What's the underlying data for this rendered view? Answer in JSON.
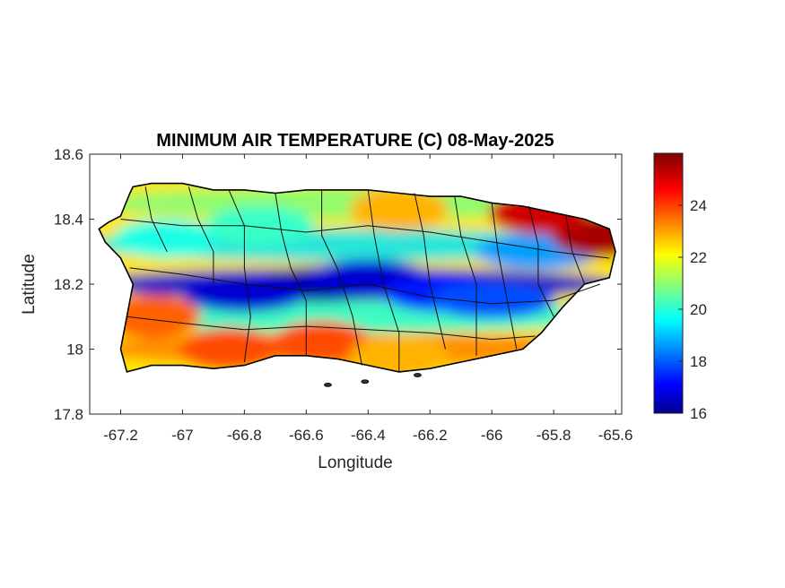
{
  "figure": {
    "title": "MINIMUM AIR TEMPERATURE (C) 08-May-2025",
    "xlabel": "Longitude",
    "ylabel": "Latitude"
  },
  "map": {
    "region": "Puerto Rico",
    "variable": "minimum air temperature",
    "units": "C",
    "date": "08-May-2025",
    "xlim": [
      -67.3,
      -65.58
    ],
    "ylim": [
      17.8,
      18.6
    ],
    "x_ticks": [
      -67.2,
      -67,
      -66.8,
      -66.6,
      -66.4,
      -66.2,
      -66,
      -65.8,
      -65.6
    ],
    "x_tick_labels": [
      "-67.2",
      "-67",
      "-66.8",
      "-66.6",
      "-66.4",
      "-66.2",
      "-66",
      "-65.8",
      "-65.6"
    ],
    "y_ticks": [
      17.8,
      18,
      18.2,
      18.4,
      18.6
    ],
    "y_tick_labels": [
      "17.8",
      "18",
      "18.2",
      "18.4",
      "18.6"
    ],
    "colormap": "jet",
    "color_range": [
      16,
      26
    ],
    "colorbar_ticks": [
      16,
      18,
      20,
      22,
      24
    ],
    "colorbar_tick_labels": [
      "16",
      "18",
      "20",
      "22",
      "24"
    ],
    "colors": [
      "#00008f",
      "#0000ff",
      "#00ffff",
      "#ffff00",
      "#ff0000",
      "#800000"
    ],
    "features": [
      {
        "type": "cold",
        "lon": -66.55,
        "lat": 18.2,
        "value": 16.3
      },
      {
        "type": "cold",
        "lon": -66.8,
        "lat": 18.17,
        "value": 16.8
      },
      {
        "type": "cold",
        "lon": -66.4,
        "lat": 18.22,
        "value": 16.8
      },
      {
        "type": "cold",
        "lon": -66.15,
        "lat": 18.17,
        "value": 17.5
      },
      {
        "type": "cold",
        "lon": -66.0,
        "lat": 18.15,
        "value": 18
      },
      {
        "type": "cold",
        "lon": -65.85,
        "lat": 18.3,
        "value": 18.8
      },
      {
        "type": "cool",
        "lon": -67.05,
        "lat": 18.34,
        "value": 20
      },
      {
        "type": "cool",
        "lon": -66.75,
        "lat": 18.38,
        "value": 20.3
      },
      {
        "type": "warm",
        "lon": -65.65,
        "lat": 18.35,
        "value": 25.6
      },
      {
        "type": "warm",
        "lon": -65.85,
        "lat": 18.42,
        "value": 25.2
      },
      {
        "type": "warm",
        "lon": -66.85,
        "lat": 18.0,
        "value": 24
      },
      {
        "type": "warm",
        "lon": -66.55,
        "lat": 18.02,
        "value": 24
      },
      {
        "type": "warm",
        "lon": -67.1,
        "lat": 18.1,
        "value": 23.8
      },
      {
        "type": "warm",
        "lon": -66.3,
        "lat": 18.43,
        "value": 23
      },
      {
        "type": "warm",
        "lon": -66.3,
        "lat": 17.98,
        "value": 23
      }
    ],
    "outline": [
      [
        -67.27,
        18.37
      ],
      [
        -67.24,
        18.39
      ],
      [
        -67.2,
        18.41
      ],
      [
        -67.17,
        18.48
      ],
      [
        -67.16,
        18.5
      ],
      [
        -67.1,
        18.51
      ],
      [
        -67.0,
        18.51
      ],
      [
        -66.9,
        18.49
      ],
      [
        -66.8,
        18.49
      ],
      [
        -66.7,
        18.48
      ],
      [
        -66.6,
        18.49
      ],
      [
        -66.5,
        18.49
      ],
      [
        -66.4,
        18.49
      ],
      [
        -66.3,
        18.48
      ],
      [
        -66.2,
        18.47
      ],
      [
        -66.1,
        18.47
      ],
      [
        -66.0,
        18.45
      ],
      [
        -65.9,
        18.44
      ],
      [
        -65.8,
        18.42
      ],
      [
        -65.7,
        18.4
      ],
      [
        -65.62,
        18.37
      ],
      [
        -65.6,
        18.3
      ],
      [
        -65.62,
        18.22
      ],
      [
        -65.7,
        18.2
      ],
      [
        -65.77,
        18.13
      ],
      [
        -65.84,
        18.05
      ],
      [
        -65.9,
        18.0
      ],
      [
        -66.0,
        17.98
      ],
      [
        -66.1,
        17.96
      ],
      [
        -66.2,
        17.94
      ],
      [
        -66.3,
        17.93
      ],
      [
        -66.4,
        17.95
      ],
      [
        -66.5,
        17.97
      ],
      [
        -66.6,
        17.98
      ],
      [
        -66.7,
        17.98
      ],
      [
        -66.8,
        17.95
      ],
      [
        -66.9,
        17.94
      ],
      [
        -67.0,
        17.95
      ],
      [
        -67.1,
        17.95
      ],
      [
        -67.18,
        17.93
      ],
      [
        -67.2,
        18.0
      ],
      [
        -67.18,
        18.1
      ],
      [
        -67.16,
        18.2
      ],
      [
        -67.2,
        18.28
      ],
      [
        -67.25,
        18.33
      ]
    ],
    "municipal_lines": [
      [
        [
          -67.12,
          18.5
        ],
        [
          -67.1,
          18.4
        ],
        [
          -67.05,
          18.3
        ]
      ],
      [
        [
          -66.98,
          18.5
        ],
        [
          -66.95,
          18.4
        ],
        [
          -66.9,
          18.3
        ],
        [
          -66.9,
          18.2
        ]
      ],
      [
        [
          -66.85,
          18.49
        ],
        [
          -66.8,
          18.38
        ],
        [
          -66.8,
          18.25
        ],
        [
          -66.78,
          18.1
        ],
        [
          -66.8,
          17.96
        ]
      ],
      [
        [
          -66.7,
          18.48
        ],
        [
          -66.68,
          18.36
        ],
        [
          -66.65,
          18.25
        ],
        [
          -66.6,
          18.15
        ],
        [
          -66.6,
          17.98
        ]
      ],
      [
        [
          -66.55,
          18.49
        ],
        [
          -66.55,
          18.35
        ],
        [
          -66.5,
          18.25
        ],
        [
          -66.45,
          18.1
        ],
        [
          -66.42,
          17.95
        ]
      ],
      [
        [
          -66.4,
          18.49
        ],
        [
          -66.38,
          18.35
        ],
        [
          -66.35,
          18.2
        ],
        [
          -66.3,
          18.05
        ],
        [
          -66.3,
          17.93
        ]
      ],
      [
        [
          -66.25,
          18.48
        ],
        [
          -66.22,
          18.35
        ],
        [
          -66.2,
          18.2
        ],
        [
          -66.15,
          18.0
        ]
      ],
      [
        [
          -66.12,
          18.47
        ],
        [
          -66.1,
          18.35
        ],
        [
          -66.05,
          18.2
        ],
        [
          -66.05,
          17.98
        ]
      ],
      [
        [
          -66.0,
          18.45
        ],
        [
          -65.98,
          18.3
        ],
        [
          -65.95,
          18.15
        ],
        [
          -65.92,
          18.0
        ]
      ],
      [
        [
          -65.88,
          18.44
        ],
        [
          -65.85,
          18.32
        ],
        [
          -65.85,
          18.2
        ],
        [
          -65.8,
          18.1
        ]
      ],
      [
        [
          -65.76,
          18.41
        ],
        [
          -65.74,
          18.3
        ],
        [
          -65.7,
          18.2
        ]
      ],
      [
        [
          -67.2,
          18.4
        ],
        [
          -67.0,
          18.38
        ],
        [
          -66.8,
          18.38
        ],
        [
          -66.6,
          18.36
        ],
        [
          -66.4,
          18.38
        ],
        [
          -66.2,
          18.36
        ],
        [
          -66.0,
          18.33
        ],
        [
          -65.8,
          18.3
        ],
        [
          -65.62,
          18.28
        ]
      ],
      [
        [
          -67.17,
          18.25
        ],
        [
          -67.0,
          18.23
        ],
        [
          -66.8,
          18.2
        ],
        [
          -66.6,
          18.18
        ],
        [
          -66.4,
          18.2
        ],
        [
          -66.2,
          18.16
        ],
        [
          -66.0,
          18.14
        ],
        [
          -65.8,
          18.15
        ],
        [
          -65.65,
          18.2
        ]
      ],
      [
        [
          -67.18,
          18.1
        ],
        [
          -67.0,
          18.08
        ],
        [
          -66.8,
          18.06
        ],
        [
          -66.6,
          18.07
        ],
        [
          -66.4,
          18.06
        ],
        [
          -66.2,
          18.05
        ],
        [
          -66.0,
          18.03
        ],
        [
          -65.86,
          18.04
        ]
      ]
    ],
    "islets": [
      [
        -66.53,
        17.89
      ],
      [
        -66.41,
        17.9
      ],
      [
        -66.24,
        17.92
      ]
    ]
  }
}
